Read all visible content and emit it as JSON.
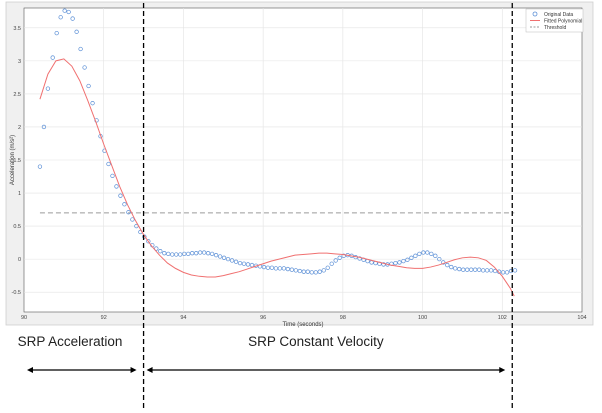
{
  "chart_data": {
    "type": "scatter",
    "title": "",
    "xlabel": "Time (seconds)",
    "ylabel": "Acceleration (m/s²)",
    "xlim": [
      90,
      104
    ],
    "ylim": [
      -0.8,
      3.8
    ],
    "x_ticks": [
      90,
      92,
      94,
      96,
      98,
      100,
      102,
      104
    ],
    "y_ticks": [
      -0.5,
      0,
      0.5,
      1,
      1.5,
      2,
      2.5,
      3,
      3.5
    ],
    "grid": true,
    "legend_position": "top-right",
    "series": [
      {
        "name": "Original Data",
        "style": "markers",
        "color": "#5b8fd6",
        "points": [
          [
            90.4,
            1.4
          ],
          [
            90.5,
            2.0
          ],
          [
            90.6,
            2.58
          ],
          [
            90.72,
            3.05
          ],
          [
            90.82,
            3.42
          ],
          [
            90.92,
            3.66
          ],
          [
            91.02,
            3.76
          ],
          [
            91.12,
            3.74
          ],
          [
            91.22,
            3.64
          ],
          [
            91.32,
            3.44
          ],
          [
            91.42,
            3.18
          ],
          [
            91.52,
            2.9
          ],
          [
            91.62,
            2.62
          ],
          [
            91.72,
            2.36
          ],
          [
            91.82,
            2.1
          ],
          [
            91.92,
            1.86
          ],
          [
            92.02,
            1.64
          ],
          [
            92.12,
            1.44
          ],
          [
            92.22,
            1.26
          ],
          [
            92.32,
            1.1
          ],
          [
            92.42,
            0.96
          ],
          [
            92.52,
            0.83
          ],
          [
            92.62,
            0.71
          ],
          [
            92.72,
            0.6
          ],
          [
            92.82,
            0.5
          ],
          [
            92.92,
            0.41
          ],
          [
            93.02,
            0.34
          ],
          [
            93.12,
            0.27
          ],
          [
            93.22,
            0.21
          ],
          [
            93.32,
            0.16
          ],
          [
            93.42,
            0.12
          ],
          [
            93.52,
            0.09
          ],
          [
            93.62,
            0.08
          ],
          [
            93.72,
            0.07
          ],
          [
            93.82,
            0.07
          ],
          [
            93.92,
            0.07
          ],
          [
            94.02,
            0.08
          ],
          [
            94.12,
            0.08
          ],
          [
            94.22,
            0.09
          ],
          [
            94.32,
            0.09
          ],
          [
            94.42,
            0.1
          ],
          [
            94.52,
            0.1
          ],
          [
            94.62,
            0.09
          ],
          [
            94.72,
            0.08
          ],
          [
            94.82,
            0.06
          ],
          [
            94.92,
            0.04
          ],
          [
            95.02,
            0.02
          ],
          [
            95.12,
            0.0
          ],
          [
            95.22,
            -0.02
          ],
          [
            95.32,
            -0.04
          ],
          [
            95.42,
            -0.06
          ],
          [
            95.52,
            -0.07
          ],
          [
            95.62,
            -0.08
          ],
          [
            95.72,
            -0.09
          ],
          [
            95.82,
            -0.1
          ],
          [
            95.92,
            -0.11
          ],
          [
            96.02,
            -0.12
          ],
          [
            96.12,
            -0.13
          ],
          [
            96.22,
            -0.13
          ],
          [
            96.32,
            -0.14
          ],
          [
            96.42,
            -0.14
          ],
          [
            96.52,
            -0.14
          ],
          [
            96.62,
            -0.15
          ],
          [
            96.72,
            -0.16
          ],
          [
            96.82,
            -0.17
          ],
          [
            96.92,
            -0.18
          ],
          [
            97.02,
            -0.19
          ],
          [
            97.12,
            -0.19
          ],
          [
            97.22,
            -0.2
          ],
          [
            97.32,
            -0.2
          ],
          [
            97.42,
            -0.19
          ],
          [
            97.52,
            -0.17
          ],
          [
            97.62,
            -0.13
          ],
          [
            97.72,
            -0.07
          ],
          [
            97.82,
            -0.02
          ],
          [
            97.92,
            0.02
          ],
          [
            98.02,
            0.05
          ],
          [
            98.12,
            0.06
          ],
          [
            98.22,
            0.05
          ],
          [
            98.32,
            0.03
          ],
          [
            98.42,
            0.01
          ],
          [
            98.52,
            -0.01
          ],
          [
            98.62,
            -0.03
          ],
          [
            98.72,
            -0.05
          ],
          [
            98.82,
            -0.06
          ],
          [
            98.92,
            -0.07
          ],
          [
            99.02,
            -0.08
          ],
          [
            99.12,
            -0.08
          ],
          [
            99.22,
            -0.07
          ],
          [
            99.32,
            -0.06
          ],
          [
            99.42,
            -0.05
          ],
          [
            99.52,
            -0.03
          ],
          [
            99.62,
            -0.01
          ],
          [
            99.72,
            0.02
          ],
          [
            99.82,
            0.05
          ],
          [
            99.92,
            0.08
          ],
          [
            100.02,
            0.1
          ],
          [
            100.12,
            0.1
          ],
          [
            100.22,
            0.08
          ],
          [
            100.32,
            0.05
          ],
          [
            100.42,
            0.0
          ],
          [
            100.52,
            -0.05
          ],
          [
            100.62,
            -0.09
          ],
          [
            100.72,
            -0.12
          ],
          [
            100.82,
            -0.14
          ],
          [
            100.92,
            -0.15
          ],
          [
            101.02,
            -0.16
          ],
          [
            101.12,
            -0.16
          ],
          [
            101.22,
            -0.16
          ],
          [
            101.32,
            -0.16
          ],
          [
            101.42,
            -0.16
          ],
          [
            101.52,
            -0.17
          ],
          [
            101.62,
            -0.17
          ],
          [
            101.72,
            -0.17
          ],
          [
            101.82,
            -0.18
          ],
          [
            101.92,
            -0.19
          ],
          [
            102.02,
            -0.2
          ],
          [
            102.12,
            -0.2
          ],
          [
            102.22,
            -0.18
          ],
          [
            102.32,
            -0.17
          ]
        ]
      },
      {
        "name": "Fitted Polynomial",
        "style": "line",
        "color": "#f07070",
        "points": [
          [
            90.4,
            2.42
          ],
          [
            90.6,
            2.8
          ],
          [
            90.8,
            3.0
          ],
          [
            91.0,
            3.03
          ],
          [
            91.2,
            2.92
          ],
          [
            91.4,
            2.7
          ],
          [
            91.6,
            2.4
          ],
          [
            91.8,
            2.08
          ],
          [
            92.0,
            1.74
          ],
          [
            92.2,
            1.42
          ],
          [
            92.4,
            1.1
          ],
          [
            92.6,
            0.82
          ],
          [
            92.8,
            0.58
          ],
          [
            93.0,
            0.37
          ],
          [
            93.2,
            0.2
          ],
          [
            93.4,
            0.06
          ],
          [
            93.6,
            -0.06
          ],
          [
            93.8,
            -0.14
          ],
          [
            94.0,
            -0.2
          ],
          [
            94.2,
            -0.24
          ],
          [
            94.4,
            -0.26
          ],
          [
            94.6,
            -0.27
          ],
          [
            94.8,
            -0.27
          ],
          [
            95.0,
            -0.25
          ],
          [
            95.2,
            -0.22
          ],
          [
            95.4,
            -0.19
          ],
          [
            95.6,
            -0.15
          ],
          [
            95.8,
            -0.11
          ],
          [
            96.0,
            -0.07
          ],
          [
            96.2,
            -0.03
          ],
          [
            96.4,
            0.0
          ],
          [
            96.6,
            0.03
          ],
          [
            96.8,
            0.06
          ],
          [
            97.0,
            0.07
          ],
          [
            97.2,
            0.08
          ],
          [
            97.4,
            0.09
          ],
          [
            97.6,
            0.09
          ],
          [
            97.8,
            0.08
          ],
          [
            98.0,
            0.07
          ],
          [
            98.2,
            0.05
          ],
          [
            98.4,
            0.03
          ],
          [
            98.6,
            0.0
          ],
          [
            98.8,
            -0.03
          ],
          [
            99.0,
            -0.06
          ],
          [
            99.2,
            -0.09
          ],
          [
            99.4,
            -0.11
          ],
          [
            99.6,
            -0.13
          ],
          [
            99.8,
            -0.14
          ],
          [
            100.0,
            -0.14
          ],
          [
            100.2,
            -0.12
          ],
          [
            100.4,
            -0.09
          ],
          [
            100.6,
            -0.05
          ],
          [
            100.8,
            -0.01
          ],
          [
            101.0,
            0.02
          ],
          [
            101.2,
            0.03
          ],
          [
            101.4,
            0.02
          ],
          [
            101.6,
            -0.02
          ],
          [
            101.8,
            -0.12
          ],
          [
            102.0,
            -0.26
          ],
          [
            102.2,
            -0.44
          ],
          [
            102.3,
            -0.56
          ]
        ]
      },
      {
        "name": "Threshold",
        "style": "dashed",
        "color": "#9a9a9a",
        "points": [
          [
            90.4,
            0.7
          ],
          [
            102.3,
            0.7
          ]
        ]
      }
    ],
    "boundaries": [
      93.0,
      102.25
    ],
    "phases": [
      {
        "label": "SRP Acceleration",
        "start": 90.0,
        "end": 93.0
      },
      {
        "label": "SRP Constant Velocity",
        "start": 93.0,
        "end": 102.25
      }
    ]
  }
}
